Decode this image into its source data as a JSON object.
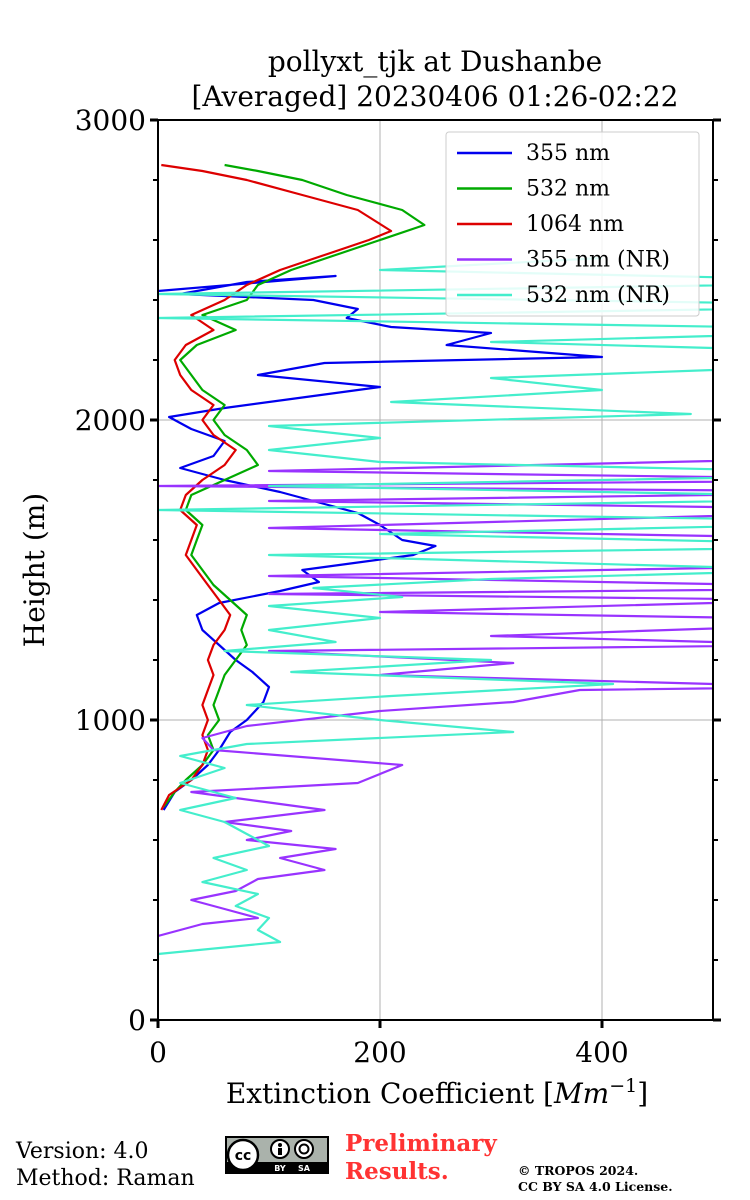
{
  "chart_data": {
    "type": "line",
    "title_line1": "pollyxt_tjk at Dushanbe",
    "title_line2": "[Averaged] 20230406 01:26-02:22",
    "xlabel_text": "Extinction Coefficient [",
    "xlabel_unit": "Mm",
    "xlabel_exp": "−1",
    "xlabel_close": "]",
    "ylabel": "Height (m)",
    "xlim": [
      0,
      500
    ],
    "ylim": [
      0,
      3000
    ],
    "xticks": [
      "0",
      "200",
      "400"
    ],
    "yticks": [
      "0",
      "1000",
      "2000",
      "3000"
    ],
    "grid": true,
    "legend_position": "top-right",
    "series": [
      {
        "name": "355 nm",
        "color": "#0000ee",
        "points": [
          [
            5,
            700
          ],
          [
            15,
            760
          ],
          [
            30,
            800
          ],
          [
            45,
            850
          ],
          [
            55,
            900
          ],
          [
            65,
            960
          ],
          [
            80,
            1000
          ],
          [
            95,
            1060
          ],
          [
            100,
            1110
          ],
          [
            85,
            1160
          ],
          [
            70,
            1200
          ],
          [
            55,
            1250
          ],
          [
            40,
            1300
          ],
          [
            35,
            1350
          ],
          [
            55,
            1390
          ],
          [
            110,
            1430
          ],
          [
            145,
            1460
          ],
          [
            130,
            1500
          ],
          [
            170,
            1520
          ],
          [
            230,
            1550
          ],
          [
            250,
            1580
          ],
          [
            220,
            1600
          ],
          [
            200,
            1650
          ],
          [
            180,
            1690
          ],
          [
            150,
            1720
          ],
          [
            110,
            1760
          ],
          [
            60,
            1800
          ],
          [
            20,
            1840
          ],
          [
            50,
            1880
          ],
          [
            60,
            1930
          ],
          [
            30,
            1970
          ],
          [
            10,
            2010
          ],
          [
            60,
            2040
          ],
          [
            120,
            2070
          ],
          [
            200,
            2110
          ],
          [
            90,
            2150
          ],
          [
            150,
            2190
          ],
          [
            400,
            2210
          ],
          [
            260,
            2250
          ],
          [
            300,
            2290
          ],
          [
            210,
            2310
          ],
          [
            170,
            2340
          ],
          [
            180,
            2370
          ],
          [
            140,
            2400
          ],
          [
            20,
            2420
          ],
          [
            80,
            2460
          ],
          [
            160,
            2480
          ],
          [
            0,
            2430
          ]
        ]
      },
      {
        "name": "532 nm",
        "color": "#00aa00",
        "points": [
          [
            5,
            710
          ],
          [
            15,
            760
          ],
          [
            25,
            800
          ],
          [
            40,
            850
          ],
          [
            50,
            900
          ],
          [
            45,
            950
          ],
          [
            55,
            1000
          ],
          [
            50,
            1050
          ],
          [
            55,
            1100
          ],
          [
            60,
            1150
          ],
          [
            70,
            1200
          ],
          [
            80,
            1250
          ],
          [
            75,
            1300
          ],
          [
            80,
            1350
          ],
          [
            65,
            1400
          ],
          [
            50,
            1450
          ],
          [
            40,
            1500
          ],
          [
            30,
            1550
          ],
          [
            35,
            1600
          ],
          [
            40,
            1650
          ],
          [
            25,
            1700
          ],
          [
            30,
            1750
          ],
          [
            60,
            1800
          ],
          [
            90,
            1850
          ],
          [
            80,
            1900
          ],
          [
            60,
            1950
          ],
          [
            50,
            2000
          ],
          [
            60,
            2050
          ],
          [
            40,
            2100
          ],
          [
            30,
            2150
          ],
          [
            20,
            2200
          ],
          [
            35,
            2250
          ],
          [
            70,
            2300
          ],
          [
            40,
            2350
          ],
          [
            80,
            2400
          ],
          [
            90,
            2450
          ],
          [
            120,
            2500
          ],
          [
            160,
            2550
          ],
          [
            200,
            2600
          ],
          [
            240,
            2650
          ],
          [
            220,
            2700
          ],
          [
            170,
            2750
          ],
          [
            130,
            2800
          ],
          [
            90,
            2830
          ],
          [
            60,
            2850
          ]
        ]
      },
      {
        "name": "1064 nm",
        "color": "#dd0000",
        "points": [
          [
            3,
            700
          ],
          [
            10,
            750
          ],
          [
            30,
            800
          ],
          [
            40,
            850
          ],
          [
            45,
            900
          ],
          [
            40,
            950
          ],
          [
            45,
            1000
          ],
          [
            40,
            1050
          ],
          [
            45,
            1100
          ],
          [
            50,
            1150
          ],
          [
            45,
            1200
          ],
          [
            50,
            1250
          ],
          [
            60,
            1300
          ],
          [
            65,
            1350
          ],
          [
            55,
            1400
          ],
          [
            45,
            1450
          ],
          [
            35,
            1500
          ],
          [
            25,
            1550
          ],
          [
            30,
            1600
          ],
          [
            35,
            1650
          ],
          [
            20,
            1700
          ],
          [
            25,
            1750
          ],
          [
            40,
            1800
          ],
          [
            60,
            1850
          ],
          [
            70,
            1900
          ],
          [
            50,
            1950
          ],
          [
            40,
            2000
          ],
          [
            50,
            2050
          ],
          [
            30,
            2100
          ],
          [
            20,
            2150
          ],
          [
            15,
            2200
          ],
          [
            25,
            2250
          ],
          [
            50,
            2300
          ],
          [
            30,
            2350
          ],
          [
            60,
            2400
          ],
          [
            80,
            2450
          ],
          [
            110,
            2500
          ],
          [
            150,
            2550
          ],
          [
            190,
            2600
          ],
          [
            210,
            2630
          ],
          [
            180,
            2700
          ],
          [
            130,
            2750
          ],
          [
            80,
            2800
          ],
          [
            40,
            2830
          ],
          [
            3,
            2850
          ]
        ]
      },
      {
        "name": "355 nm (NR)",
        "color": "#9933ff",
        "points": [
          [
            0,
            280
          ],
          [
            40,
            320
          ],
          [
            90,
            340
          ],
          [
            60,
            370
          ],
          [
            30,
            400
          ],
          [
            70,
            430
          ],
          [
            90,
            470
          ],
          [
            150,
            500
          ],
          [
            110,
            540
          ],
          [
            160,
            570
          ],
          [
            80,
            600
          ],
          [
            120,
            630
          ],
          [
            60,
            660
          ],
          [
            150,
            700
          ],
          [
            90,
            730
          ],
          [
            30,
            760
          ],
          [
            180,
            790
          ],
          [
            220,
            850
          ],
          [
            50,
            900
          ],
          [
            40,
            940
          ],
          [
            80,
            980
          ],
          [
            200,
            1030
          ],
          [
            320,
            1060
          ],
          [
            380,
            1100
          ],
          [
            600,
            1110
          ],
          [
            200,
            1150
          ],
          [
            320,
            1190
          ],
          [
            100,
            1230
          ],
          [
            600,
            1250
          ],
          [
            300,
            1280
          ],
          [
            700,
            1330
          ],
          [
            200,
            1360
          ],
          [
            600,
            1400
          ],
          [
            100,
            1420
          ],
          [
            700,
            1440
          ],
          [
            100,
            1480
          ],
          [
            700,
            1520
          ],
          [
            700,
            1600
          ],
          [
            100,
            1640
          ],
          [
            700,
            1700
          ],
          [
            100,
            1730
          ],
          [
            700,
            1760
          ],
          [
            0,
            1780
          ],
          [
            700,
            1800
          ],
          [
            100,
            1830
          ],
          [
            700,
            1880
          ]
        ]
      },
      {
        "name": "532 nm (NR)",
        "color": "#44eecc",
        "points": [
          [
            0,
            220
          ],
          [
            110,
            260
          ],
          [
            90,
            300
          ],
          [
            100,
            340
          ],
          [
            70,
            380
          ],
          [
            90,
            420
          ],
          [
            40,
            460
          ],
          [
            80,
            500
          ],
          [
            50,
            540
          ],
          [
            100,
            580
          ],
          [
            80,
            620
          ],
          [
            60,
            660
          ],
          [
            20,
            700
          ],
          [
            70,
            740
          ],
          [
            20,
            790
          ],
          [
            60,
            840
          ],
          [
            20,
            880
          ],
          [
            80,
            920
          ],
          [
            320,
            960
          ],
          [
            200,
            1000
          ],
          [
            80,
            1050
          ],
          [
            210,
            1080
          ],
          [
            410,
            1120
          ],
          [
            120,
            1160
          ],
          [
            300,
            1200
          ],
          [
            60,
            1230
          ],
          [
            160,
            1260
          ],
          [
            100,
            1300
          ],
          [
            200,
            1340
          ],
          [
            100,
            1380
          ],
          [
            220,
            1410
          ],
          [
            140,
            1440
          ],
          [
            300,
            1470
          ],
          [
            600,
            1500
          ],
          [
            100,
            1550
          ],
          [
            700,
            1580
          ],
          [
            200,
            1620
          ],
          [
            700,
            1660
          ],
          [
            0,
            1700
          ],
          [
            700,
            1740
          ],
          [
            100,
            1780
          ],
          [
            700,
            1820
          ],
          [
            200,
            1860
          ],
          [
            100,
            1900
          ],
          [
            200,
            1940
          ],
          [
            100,
            1980
          ],
          [
            480,
            2020
          ],
          [
            210,
            2060
          ],
          [
            400,
            2100
          ],
          [
            300,
            2140
          ],
          [
            600,
            2180
          ],
          [
            700,
            2220
          ],
          [
            300,
            2260
          ],
          [
            700,
            2300
          ],
          [
            0,
            2340
          ],
          [
            700,
            2380
          ],
          [
            0,
            2420
          ],
          [
            700,
            2460
          ],
          [
            200,
            2500
          ],
          [
            400,
            2540
          ]
        ]
      }
    ]
  },
  "footer": {
    "version": "Version: 4.0",
    "method": "Method: Raman",
    "preliminary_line1": "Preliminary",
    "preliminary_line2": "Results.",
    "copyright_line1": "© TROPOS 2024.",
    "copyright_line2": "CC BY SA 4.0 License.",
    "license_badge": {
      "cc": "cc",
      "by": "BY",
      "sa": "SA"
    }
  }
}
